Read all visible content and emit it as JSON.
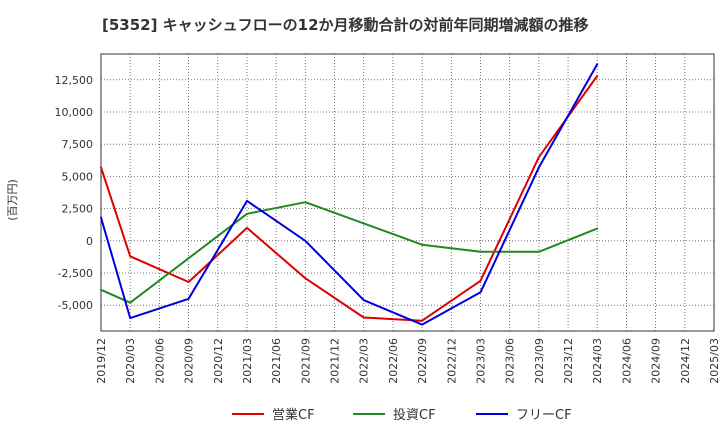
{
  "chart_data": {
    "type": "line",
    "title": "[5352]  キャッシュフローの12か月移動合計の対前年同期増減額の推移",
    "ylabel": "(百万円)",
    "xlabel": "",
    "x": [
      "2019/12",
      "2020/03",
      "2020/06",
      "2020/09",
      "2020/12",
      "2021/03",
      "2021/06",
      "2021/09",
      "2021/12",
      "2022/03",
      "2022/06",
      "2022/09",
      "2022/12",
      "2023/03",
      "2023/06",
      "2023/09",
      "2023/12",
      "2024/03",
      "2024/06",
      "2024/09",
      "2024/12",
      "2025/03"
    ],
    "ylim": [
      -7000,
      14500
    ],
    "yticks": [
      -5000,
      -2500,
      0,
      2500,
      5000,
      7500,
      10000,
      12500
    ],
    "ytick_labels": [
      "-5,000",
      "-2,500",
      "0",
      "2,500",
      "5,000",
      "7,500",
      "10,000",
      "12,500"
    ],
    "grid": true,
    "legend_position": "bottom",
    "series": [
      {
        "name": "営業CF",
        "color": "#dd0000",
        "values": [
          5700,
          -1200,
          null,
          -3200,
          null,
          1000,
          null,
          -2900,
          null,
          -5950,
          null,
          -6200,
          null,
          -3100,
          null,
          6500,
          null,
          12800,
          null,
          null,
          null,
          null
        ]
      },
      {
        "name": "投資CF",
        "color": "#228822",
        "values": [
          -3800,
          -4800,
          null,
          null,
          null,
          2100,
          null,
          3000,
          null,
          null,
          null,
          -300,
          null,
          -850,
          null,
          -850,
          null,
          950,
          null,
          null,
          null,
          null
        ]
      },
      {
        "name": "フリーCF",
        "color": "#0000dd",
        "values": [
          1800,
          -6000,
          null,
          -4500,
          null,
          3100,
          null,
          0,
          null,
          -4600,
          null,
          -6500,
          null,
          -4000,
          null,
          5700,
          null,
          13700,
          null,
          null,
          null,
          null
        ]
      }
    ]
  }
}
